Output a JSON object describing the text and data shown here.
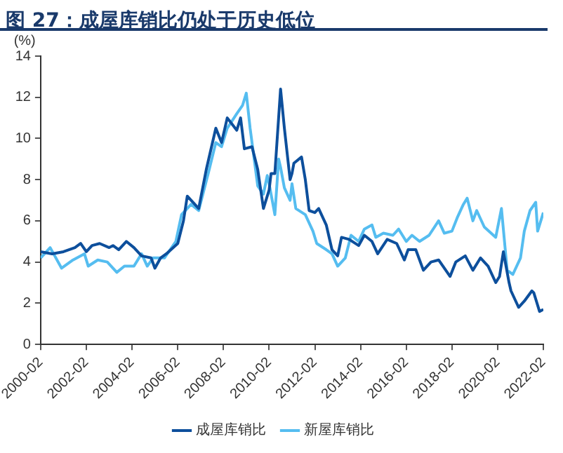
{
  "chart_data": {
    "type": "line",
    "title": "图 27：成屋库销比仍处于历史低位",
    "ylabel": "(%)",
    "xlim": [
      "2000-02",
      "2022-02"
    ],
    "xticks": [
      "2000-02",
      "2002-02",
      "2004-02",
      "2006-02",
      "2008-02",
      "2010-02",
      "2012-02",
      "2014-02",
      "2016-02",
      "2018-02",
      "2020-02",
      "2022-02"
    ],
    "ylim": [
      0,
      14
    ],
    "yticks": [
      0,
      2,
      4,
      6,
      8,
      10,
      12,
      14
    ],
    "grid": false,
    "legend": "bottom",
    "marker": "none",
    "line_style": "solid",
    "series": [
      {
        "name": "成屋库销比",
        "color": "#0d4f9c",
        "x": [
          "2000-02",
          "2000-08",
          "2001-02",
          "2001-08",
          "2001-11",
          "2002-02",
          "2002-05",
          "2002-09",
          "2003-02",
          "2003-04",
          "2003-07",
          "2003-11",
          "2004-03",
          "2004-07",
          "2004-12",
          "2005-02",
          "2005-05",
          "2005-08",
          "2006-02",
          "2006-05",
          "2006-07",
          "2007-01",
          "2007-05",
          "2007-10",
          "2008-01",
          "2008-04",
          "2008-09",
          "2008-11",
          "2009-01",
          "2009-05",
          "2009-08",
          "2009-11",
          "2010-02",
          "2010-03",
          "2010-05",
          "2010-08",
          "2010-10",
          "2011-01",
          "2011-02",
          "2011-03",
          "2011-07",
          "2011-09",
          "2011-11",
          "2012-02",
          "2012-04",
          "2012-08",
          "2012-11",
          "2013-02",
          "2013-04",
          "2013-08",
          "2014-01",
          "2014-04",
          "2014-08",
          "2014-11",
          "2015-04",
          "2015-09",
          "2016-01",
          "2016-03",
          "2016-07",
          "2016-11",
          "2017-03",
          "2017-07",
          "2018-01",
          "2018-04",
          "2018-09",
          "2019-01",
          "2019-05",
          "2019-09",
          "2020-01",
          "2020-03",
          "2020-05",
          "2020-08",
          "2020-09",
          "2021-01",
          "2021-04",
          "2021-08",
          "2021-09",
          "2021-12",
          "2022-02"
        ],
        "values": [
          4.5,
          4.4,
          4.5,
          4.7,
          4.9,
          4.5,
          4.8,
          4.9,
          4.7,
          4.8,
          4.6,
          5.0,
          4.7,
          4.3,
          4.2,
          3.7,
          4.2,
          4.4,
          4.9,
          6.0,
          7.2,
          6.6,
          8.5,
          10.5,
          9.8,
          11.0,
          10.4,
          11.0,
          9.5,
          9.6,
          8.5,
          6.6,
          7.5,
          8.3,
          8.3,
          12.4,
          10.5,
          8.0,
          8.3,
          8.8,
          9.1,
          8.0,
          6.5,
          6.4,
          6.6,
          5.8,
          4.6,
          4.3,
          5.2,
          5.1,
          4.8,
          5.3,
          5.0,
          4.4,
          5.1,
          4.9,
          4.1,
          4.6,
          4.6,
          3.6,
          4.0,
          4.1,
          3.3,
          4.0,
          4.3,
          3.6,
          4.2,
          3.8,
          3.0,
          3.3,
          4.5,
          3.0,
          2.6,
          1.8,
          2.1,
          2.6,
          2.5,
          1.6,
          1.7
        ]
      },
      {
        "name": "新屋库销比",
        "color": "#55bdf0",
        "x": [
          "2000-02",
          "2000-07",
          "2001-01",
          "2001-07",
          "2002-01",
          "2002-03",
          "2002-08",
          "2003-01",
          "2003-06",
          "2003-10",
          "2004-03",
          "2004-07",
          "2004-10",
          "2005-01",
          "2005-07",
          "2006-01",
          "2006-04",
          "2006-09",
          "2007-01",
          "2007-06",
          "2007-10",
          "2008-01",
          "2008-04",
          "2008-09",
          "2008-12",
          "2009-02",
          "2009-04",
          "2009-08",
          "2009-11",
          "2010-01",
          "2010-02",
          "2010-05",
          "2010-07",
          "2010-08",
          "2010-10",
          "2011-01",
          "2011-02",
          "2011-04",
          "2011-09",
          "2012-01",
          "2012-03",
          "2012-08",
          "2012-11",
          "2013-02",
          "2013-06",
          "2013-09",
          "2014-01",
          "2014-04",
          "2014-08",
          "2014-10",
          "2015-02",
          "2015-07",
          "2015-10",
          "2016-02",
          "2016-05",
          "2016-09",
          "2017-02",
          "2017-07",
          "2017-10",
          "2018-02",
          "2018-05",
          "2018-08",
          "2018-10",
          "2019-01",
          "2019-03",
          "2019-07",
          "2020-01",
          "2020-04",
          "2020-07",
          "2020-10",
          "2021-02",
          "2021-04",
          "2021-07",
          "2021-10",
          "2021-11",
          "2022-02"
        ],
        "values": [
          4.2,
          4.7,
          3.7,
          4.1,
          4.4,
          3.8,
          4.1,
          4.0,
          3.5,
          3.8,
          3.8,
          4.4,
          3.8,
          4.2,
          4.2,
          5.0,
          6.3,
          6.8,
          6.5,
          8.3,
          9.8,
          9.6,
          10.5,
          11.2,
          11.6,
          12.2,
          10.5,
          7.7,
          7.3,
          8.2,
          7.8,
          6.3,
          9.0,
          8.6,
          7.6,
          7.0,
          7.8,
          6.6,
          6.3,
          5.5,
          4.9,
          4.6,
          4.4,
          3.8,
          4.2,
          5.3,
          5.0,
          5.6,
          5.8,
          5.2,
          5.4,
          5.3,
          5.6,
          5.0,
          5.3,
          5.0,
          5.3,
          6.0,
          5.4,
          5.5,
          6.2,
          6.8,
          7.1,
          6.0,
          6.5,
          5.7,
          5.2,
          6.6,
          3.6,
          3.4,
          4.2,
          5.5,
          6.5,
          6.9,
          5.5,
          6.4
        ]
      }
    ]
  }
}
